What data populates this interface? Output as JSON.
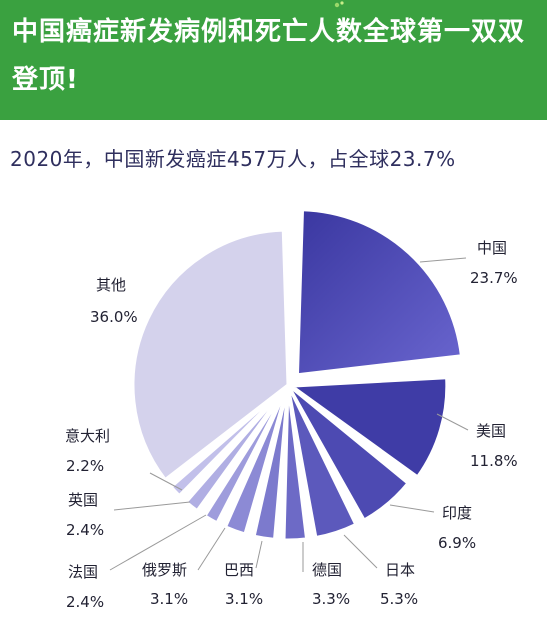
{
  "header": {
    "title": "中国癌症新发病例和死亡人数全球第一双双登顶!"
  },
  "subtitle": "2020年，中国新发癌症457万人，占全球23.7%",
  "colors": {
    "banner": "#3aa140",
    "slice_dark": "#3d3a9e",
    "slice_light": "#d4d2ec"
  },
  "chart_data": {
    "type": "pie",
    "title": "2020年，中国新发癌症457万人，占全球23.7%",
    "unit": "%",
    "slices": [
      {
        "label": "中国",
        "value": 23.7,
        "value_text": "23.7%"
      },
      {
        "label": "美国",
        "value": 11.8,
        "value_text": "11.8%"
      },
      {
        "label": "印度",
        "value": 6.9,
        "value_text": "6.9%"
      },
      {
        "label": "日本",
        "value": 5.3,
        "value_text": "5.3%"
      },
      {
        "label": "德国",
        "value": 3.3,
        "value_text": "3.3%"
      },
      {
        "label": "巴西",
        "value": 3.1,
        "value_text": "3.1%"
      },
      {
        "label": "俄罗斯",
        "value": 3.1,
        "value_text": "3.1%"
      },
      {
        "label": "法国",
        "value": 2.4,
        "value_text": "2.4%"
      },
      {
        "label": "英国",
        "value": 2.4,
        "value_text": "2.4%"
      },
      {
        "label": "意大利",
        "value": 2.2,
        "value_text": "2.2%"
      },
      {
        "label": "其他",
        "value": 36.0,
        "value_text": "36.0%"
      }
    ]
  }
}
